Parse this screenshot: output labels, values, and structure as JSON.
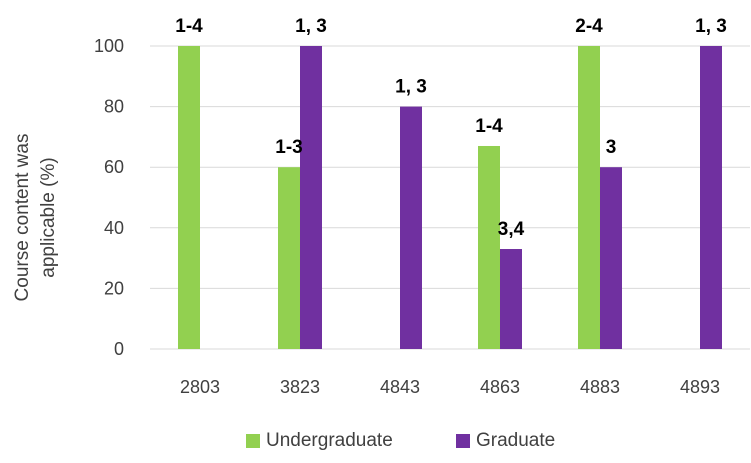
{
  "chart_data": {
    "type": "bar",
    "categories": [
      "2803",
      "3823",
      "4843",
      "4863",
      "4883",
      "4893"
    ],
    "series": [
      {
        "name": "Undergraduate",
        "color": "#92D050",
        "values": [
          100,
          60,
          null,
          67,
          100,
          null
        ],
        "labels": [
          "1-4",
          "1-3",
          null,
          "1-4",
          "2-4",
          null
        ]
      },
      {
        "name": "Graduate",
        "color": "#7030A0",
        "values": [
          null,
          100,
          80,
          33,
          60,
          100
        ],
        "labels": [
          null,
          "1, 3",
          "1, 3",
          "3,4",
          "3",
          "1, 3"
        ]
      }
    ],
    "ylabel_lines": [
      "Course content was",
      "applicable (%)"
    ],
    "ylim": [
      0,
      100
    ],
    "yticks": [
      0,
      20,
      40,
      60,
      80,
      100
    ],
    "grid": true,
    "legend_position": "bottom",
    "gridline_color": "#D9D9D9"
  }
}
